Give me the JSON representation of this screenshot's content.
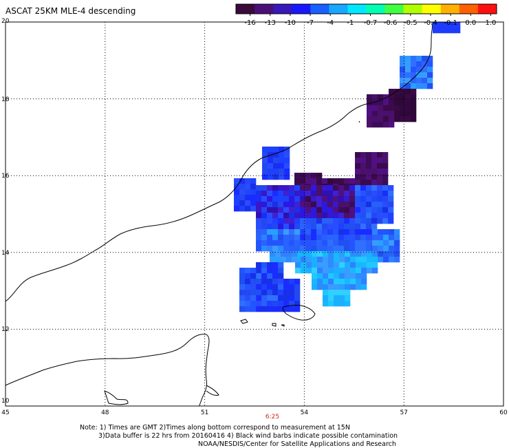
{
  "title": "ASCAT 25KM MLE-4 descending",
  "colorbar": {
    "ticks": [
      "-16",
      "-13",
      "-10",
      "-7",
      "-4",
      "-1",
      "-0.7",
      "-0.6",
      "-0.5",
      "-0.4",
      "-0.1",
      "0.0",
      "1.0"
    ],
    "colors": [
      "#3a0a3a",
      "#4a1078",
      "#3818b8",
      "#1818ff",
      "#1860ff",
      "#18a8ff",
      "#00e8ff",
      "#00ffb0",
      "#40ff40",
      "#b0ff00",
      "#ffff00",
      "#ffb000",
      "#ff6000",
      "#ff1010"
    ]
  },
  "map": {
    "lon_labels": [
      "45",
      "48",
      "51",
      "54",
      "57",
      "60"
    ],
    "lat_labels": [
      "20",
      "18",
      "16",
      "14",
      "12",
      "10"
    ],
    "time_label": "6:25"
  },
  "notes": {
    "line1": "Note: 1) Times are GMT 2)Times along bottom correspond to measurement at 15N",
    "line2": "3)Data buffer is 22 hrs from 20160416 4) Black wind barbs indicate possible contamination",
    "line3": "NOAA/NESDIS/Center for Satellite Applications and Research"
  }
}
